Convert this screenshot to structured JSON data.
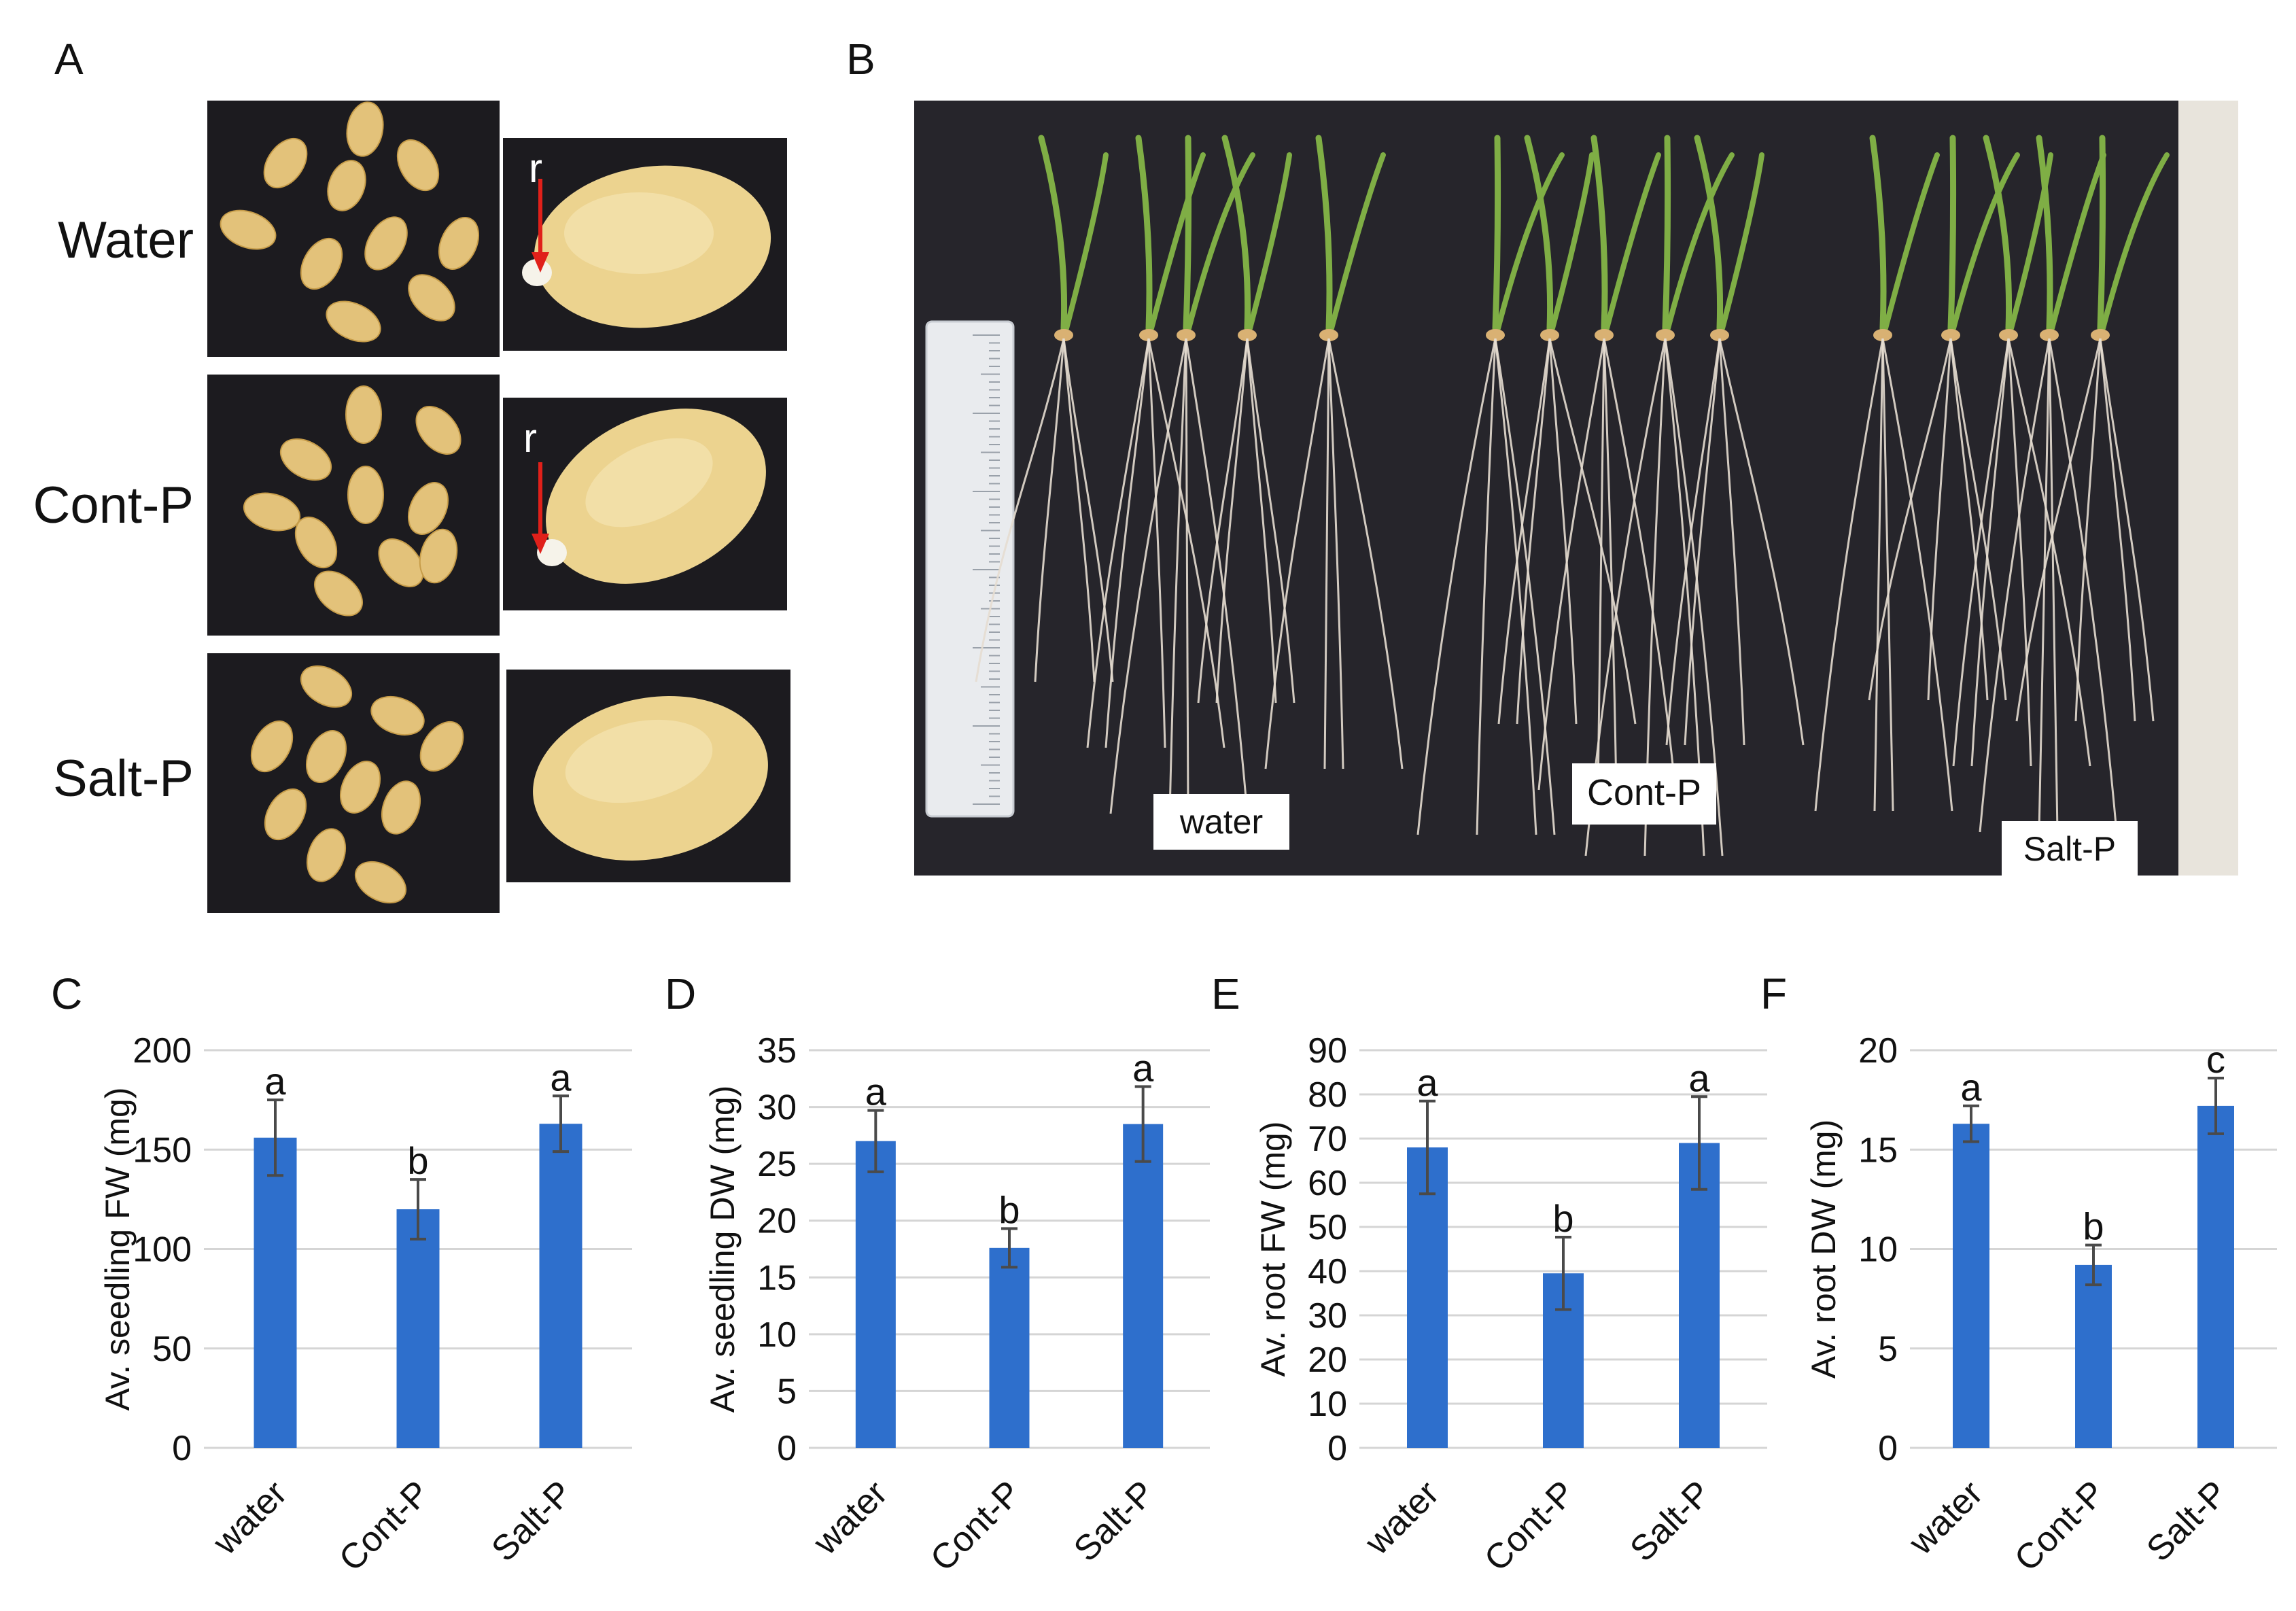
{
  "panel_letters": [
    "A",
    "B",
    "C",
    "D",
    "E",
    "F"
  ],
  "panel_a": {
    "rows": [
      "Water",
      "Cont-P",
      "Salt-P"
    ],
    "arrow_label": "r",
    "colors": {
      "background": "#1c1b1f",
      "seed": "#e3c27a",
      "arrow": "#e0201a"
    }
  },
  "panel_b": {
    "labels": [
      "water",
      "Cont-P",
      "Salt-P"
    ],
    "colors": {
      "cloth": "#26252b",
      "leaf": "#7fae45",
      "root": "#e6ddd0",
      "ruler": "#e9ebee"
    }
  },
  "chart_data": [
    {
      "type": "bar",
      "categories": [
        "water",
        "Cont-P",
        "Salt-P"
      ],
      "values": [
        156,
        120,
        163
      ],
      "errors": [
        19,
        15,
        14
      ],
      "letters": [
        "a",
        "b",
        "a"
      ],
      "ylabel": "Av. seedling FW (mg)",
      "ylim": [
        0,
        200
      ],
      "yticks": [
        0,
        50,
        100,
        150,
        200
      ],
      "grid": true,
      "bar_color": "#2e6fcc"
    },
    {
      "type": "bar",
      "categories": [
        "water",
        "Cont-P",
        "Salt-P"
      ],
      "values": [
        27,
        17.6,
        28.5
      ],
      "errors": [
        2.7,
        1.7,
        3.3
      ],
      "letters": [
        "a",
        "b",
        "a"
      ],
      "ylabel": "Av. seedling DW (mg)",
      "ylim": [
        0,
        35
      ],
      "yticks": [
        0,
        5,
        10,
        15,
        20,
        25,
        30,
        35
      ],
      "grid": true,
      "bar_color": "#2e6fcc"
    },
    {
      "type": "bar",
      "categories": [
        "water",
        "Cont-P",
        "Salt-P"
      ],
      "values": [
        68,
        39.5,
        69
      ],
      "errors": [
        10.5,
        8.2,
        10.5
      ],
      "letters": [
        "a",
        "b",
        "a"
      ],
      "ylabel": "Av. root FW  (mg)",
      "ylim": [
        0,
        90
      ],
      "yticks": [
        0,
        10,
        20,
        30,
        40,
        50,
        60,
        70,
        80,
        90
      ],
      "grid": true,
      "bar_color": "#2e6fcc"
    },
    {
      "type": "bar",
      "categories": [
        "water",
        "Cont-P",
        "Salt-P"
      ],
      "values": [
        16.3,
        9.2,
        17.2
      ],
      "errors": [
        0.9,
        1.0,
        1.4
      ],
      "letters": [
        "a",
        "b",
        "c"
      ],
      "ylabel": "Av. root DW (mg)",
      "ylim": [
        0,
        20
      ],
      "yticks": [
        0,
        5,
        10,
        15,
        20
      ],
      "grid": true,
      "bar_color": "#2e6fcc"
    }
  ]
}
